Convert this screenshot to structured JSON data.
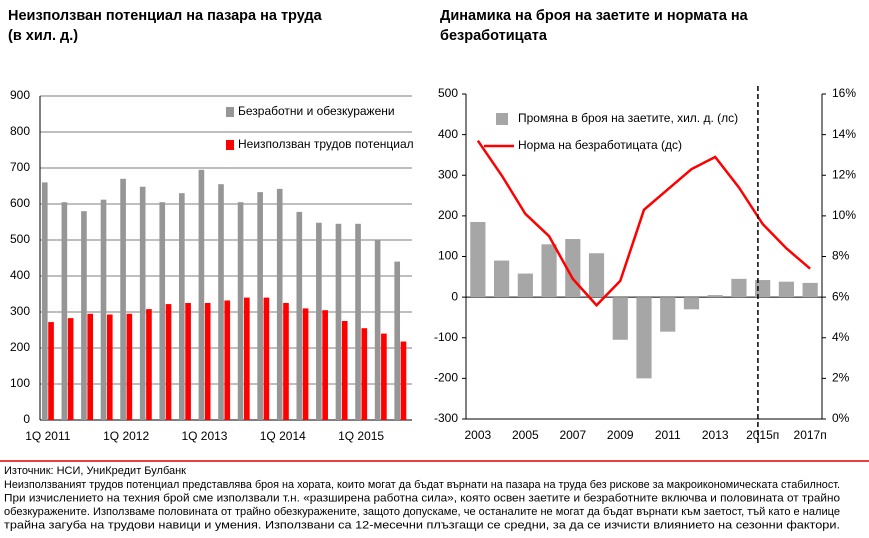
{
  "chart_data": [
    {
      "type": "bar",
      "title": "Неизползван потенциал на пазара на труда",
      "subtitle": "(в хил. д.)",
      "categories": [
        "1Q 2011",
        null,
        null,
        null,
        "1Q 2012",
        null,
        null,
        null,
        "1Q 2013",
        null,
        null,
        null,
        "1Q 2014",
        null,
        null,
        null,
        "1Q 2015",
        null,
        null
      ],
      "series": [
        {
          "name": "Безработни  и обезкуражени",
          "color": "#969696",
          "values": [
            660,
            605,
            580,
            612,
            670,
            648,
            605,
            630,
            695,
            655,
            605,
            633,
            642,
            578,
            548,
            545,
            545,
            500,
            440
          ]
        },
        {
          "name": "Неизползван  трудов  потенциал",
          "color": "#ff0000",
          "values": [
            272,
            283,
            295,
            293,
            295,
            308,
            322,
            325,
            325,
            332,
            340,
            340,
            325,
            310,
            305,
            275,
            255,
            240,
            218
          ]
        }
      ],
      "ylim": [
        0,
        900
      ],
      "yticks": [
        0,
        100,
        200,
        300,
        400,
        500,
        600,
        700,
        800,
        900
      ],
      "grid": true
    },
    {
      "type": "combo",
      "title": "Динамика на броя на заетите и нормата на",
      "subtitle": "безработицата",
      "categories": [
        "2003",
        null,
        "2005",
        null,
        "2007",
        null,
        "2009",
        null,
        "2011",
        null,
        "2013",
        null,
        "2015п",
        null,
        "2017п"
      ],
      "series": [
        {
          "name": "Промяна  в броя  на заетите,  хил.  д.  (лс)",
          "color": "#a6a6a6",
          "axis": "y",
          "values": [
            185,
            90,
            58,
            130,
            143,
            108,
            -105,
            -200,
            -85,
            -30,
            5,
            45,
            42,
            38,
            35
          ]
        },
        {
          "name": "Норма  на безработицата  (дс)",
          "color": "#ff0000",
          "axis": "y2",
          "values": [
            13.7,
            12.0,
            10.1,
            9.0,
            6.9,
            5.6,
            6.8,
            10.3,
            11.3,
            12.3,
            12.9,
            11.4,
            9.6,
            8.4,
            7.4
          ]
        }
      ],
      "ylim": [
        -300,
        500
      ],
      "yticks": [
        -300,
        -200,
        -100,
        0,
        100,
        200,
        300,
        400,
        500
      ],
      "y2lim": [
        0,
        16
      ],
      "y2ticks": [
        {
          "value": 0,
          "label": "0%"
        },
        {
          "value": 2,
          "label": "2%"
        },
        {
          "value": 4,
          "label": "4%"
        },
        {
          "value": 6,
          "label": "6%"
        },
        {
          "value": 8,
          "label": "8%"
        },
        {
          "value": 10,
          "label": "10%"
        },
        {
          "value": 12,
          "label": "12%"
        },
        {
          "value": 14,
          "label": "14%"
        },
        {
          "value": 16,
          "label": "16%"
        }
      ],
      "grid": false
    }
  ],
  "footer": {
    "source": "Източник: НСИ, УниКредит Булбанк",
    "notes": [
      "Неизползваният трудов потенциал представлява броя на хората, които могат да бъдат върнати на пазара на труда без рискове за макроикономическата стабилност.",
      "При изчислението на техния брой сме използвали т.н. «разширена работна сила», която освен заетите и безработните включва и половината от трайно",
      "обезкуражените. Използваме половината от трайно обезкуражените, защото допускаме, че останалите не могат да бъдат върнати към заетост, тъй като е налице",
      "трайна загуба на трудови навици и умения. Използвани са 12-месечни плъзгащи се средни, за да се изчисти влиянието на сезонни фактори."
    ]
  }
}
